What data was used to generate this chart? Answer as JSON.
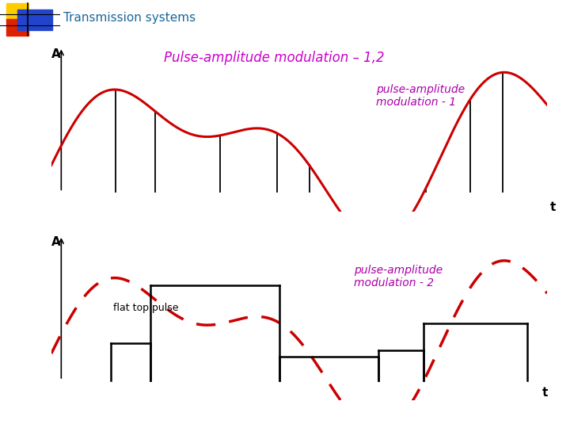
{
  "title": "Pulse-amplitude modulation – 1,2",
  "title_color": "#cc00cc",
  "title_fontsize": 12,
  "header_text": "Transmission systems",
  "header_color": "#1a6699",
  "header_fontsize": 11,
  "label_A": "A",
  "label_t": "t",
  "annotation1": "pulse-amplitude\nmodulation - 1",
  "annotation2": "pulse-amplitude\nmodulation - 2",
  "annotation3": "flat top pulse",
  "annot_color": "#aa00aa",
  "annot_fontsize": 10,
  "signal_color": "#cc0000",
  "pulse_color": "#000000",
  "axis_color": "#000000",
  "background_color": "#ffffff",
  "logo_yellow": "#ffcc00",
  "logo_red": "#dd2200",
  "logo_blue": "#2244cc"
}
